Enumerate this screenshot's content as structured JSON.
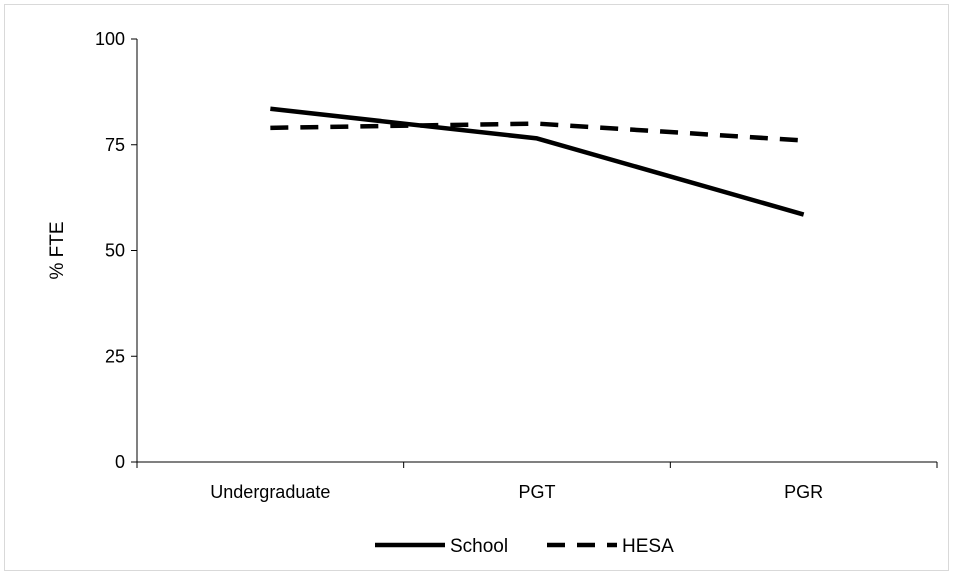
{
  "chart_data": {
    "type": "line",
    "title": "",
    "xlabel": "",
    "ylabel": "% FTE",
    "categories": [
      "Undergraduate",
      "PGT",
      "PGR"
    ],
    "ylim": [
      0,
      100
    ],
    "yticks": [
      0,
      25,
      50,
      75,
      100
    ],
    "grid": false,
    "legend_position": "bottom",
    "series": [
      {
        "name": "School",
        "values": [
          83.5,
          76.5,
          58.5
        ],
        "style": "solid",
        "color": "#000000"
      },
      {
        "name": "HESA",
        "values": [
          79,
          80,
          76
        ],
        "style": "dashed",
        "color": "#000000"
      }
    ]
  }
}
